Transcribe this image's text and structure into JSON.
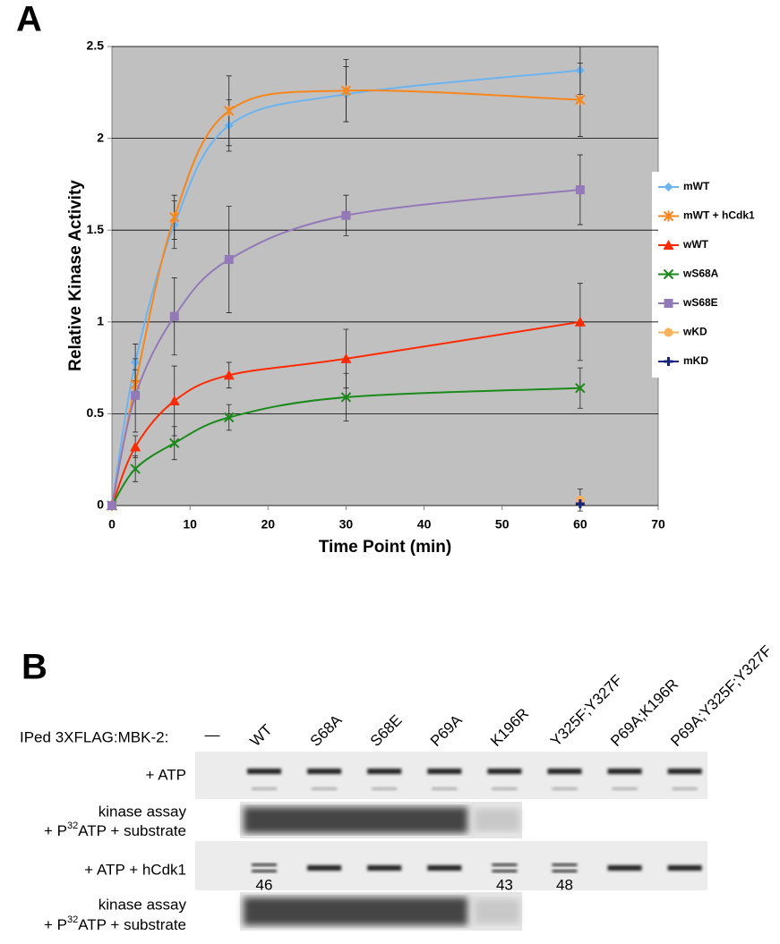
{
  "panel_labels": [
    "A",
    "B"
  ],
  "chart_data": {
    "type": "line",
    "xlabel": "Time Point (min)",
    "ylabel": "Relative Kinase Activity",
    "x": [
      0,
      3,
      8,
      15,
      30,
      60
    ],
    "xlim": [
      0,
      70
    ],
    "xticks": [
      0,
      10,
      20,
      30,
      40,
      50,
      60,
      70
    ],
    "ylim": [
      0,
      2.5
    ],
    "yticks": [
      0,
      0.5,
      1,
      1.5,
      2,
      2.5
    ],
    "grid": true,
    "legend": "right",
    "smooth": true,
    "series": [
      {
        "name": "mWT",
        "color": "#6cb4f0",
        "marker": "diamond",
        "values": [
          0,
          0.78,
          1.53,
          2.07,
          2.24,
          2.37
        ],
        "errors": [
          0,
          0.1,
          0.13,
          0.14,
          0.15,
          0.13
        ]
      },
      {
        "name": "mWT + hCdk1",
        "color": "#f7861d",
        "marker": "star",
        "values": [
          0,
          0.66,
          1.57,
          2.15,
          2.26,
          2.21
        ],
        "errors": [
          0,
          0.08,
          0.12,
          0.19,
          0.17,
          0.2
        ]
      },
      {
        "name": "wWT",
        "color": "#ff2a00",
        "marker": "triangle",
        "values": [
          0,
          0.32,
          0.57,
          0.71,
          0.8,
          1.0
        ],
        "errors": [
          0,
          0.06,
          0.19,
          0.07,
          0.16,
          0.21
        ]
      },
      {
        "name": "wS68A",
        "color": "#1a8a1a",
        "marker": "x",
        "values": [
          0,
          0.2,
          0.34,
          0.48,
          0.59,
          0.64
        ],
        "errors": [
          0,
          0.07,
          0.09,
          0.07,
          0.13,
          0.11
        ]
      },
      {
        "name": "wS68E",
        "color": "#9479b8",
        "marker": "square",
        "values": [
          0,
          0.6,
          1.03,
          1.34,
          1.58,
          1.72
        ],
        "errors": [
          0,
          0.2,
          0.21,
          0.29,
          0.11,
          0.19
        ]
      },
      {
        "name": "wKD",
        "color": "#f9b35c",
        "marker": "circle",
        "values": [
          null,
          null,
          null,
          null,
          null,
          0.03
        ],
        "errors": [
          null,
          null,
          null,
          null,
          null,
          0.06
        ]
      },
      {
        "name": "mKD",
        "color": "#1a237e",
        "marker": "plus",
        "values": [
          null,
          null,
          null,
          null,
          null,
          0.01
        ],
        "errors": [
          null,
          null,
          null,
          null,
          null,
          0
        ]
      }
    ]
  },
  "gel": {
    "header": "IPed 3XFLAG:MBK-2:",
    "control": "—",
    "lanes": [
      "WT",
      "S68A",
      "S68E",
      "P69A",
      "K196R",
      "Y325F;Y327F",
      "P69A;K196R",
      "P69A;Y325F;Y327F"
    ],
    "rows": [
      {
        "label": "+ ATP"
      },
      {
        "label": "kinase assay",
        "label2": [
          "+ P",
          "32",
          "ATP + substrate"
        ]
      },
      {
        "label": "+ ATP + hCdk1",
        "band_labels": [
          46,
          null,
          null,
          null,
          43,
          48,
          null,
          null
        ]
      },
      {
        "label": "kinase assay",
        "label2": [
          "+ P",
          "32",
          "ATP + substrate"
        ]
      }
    ]
  }
}
